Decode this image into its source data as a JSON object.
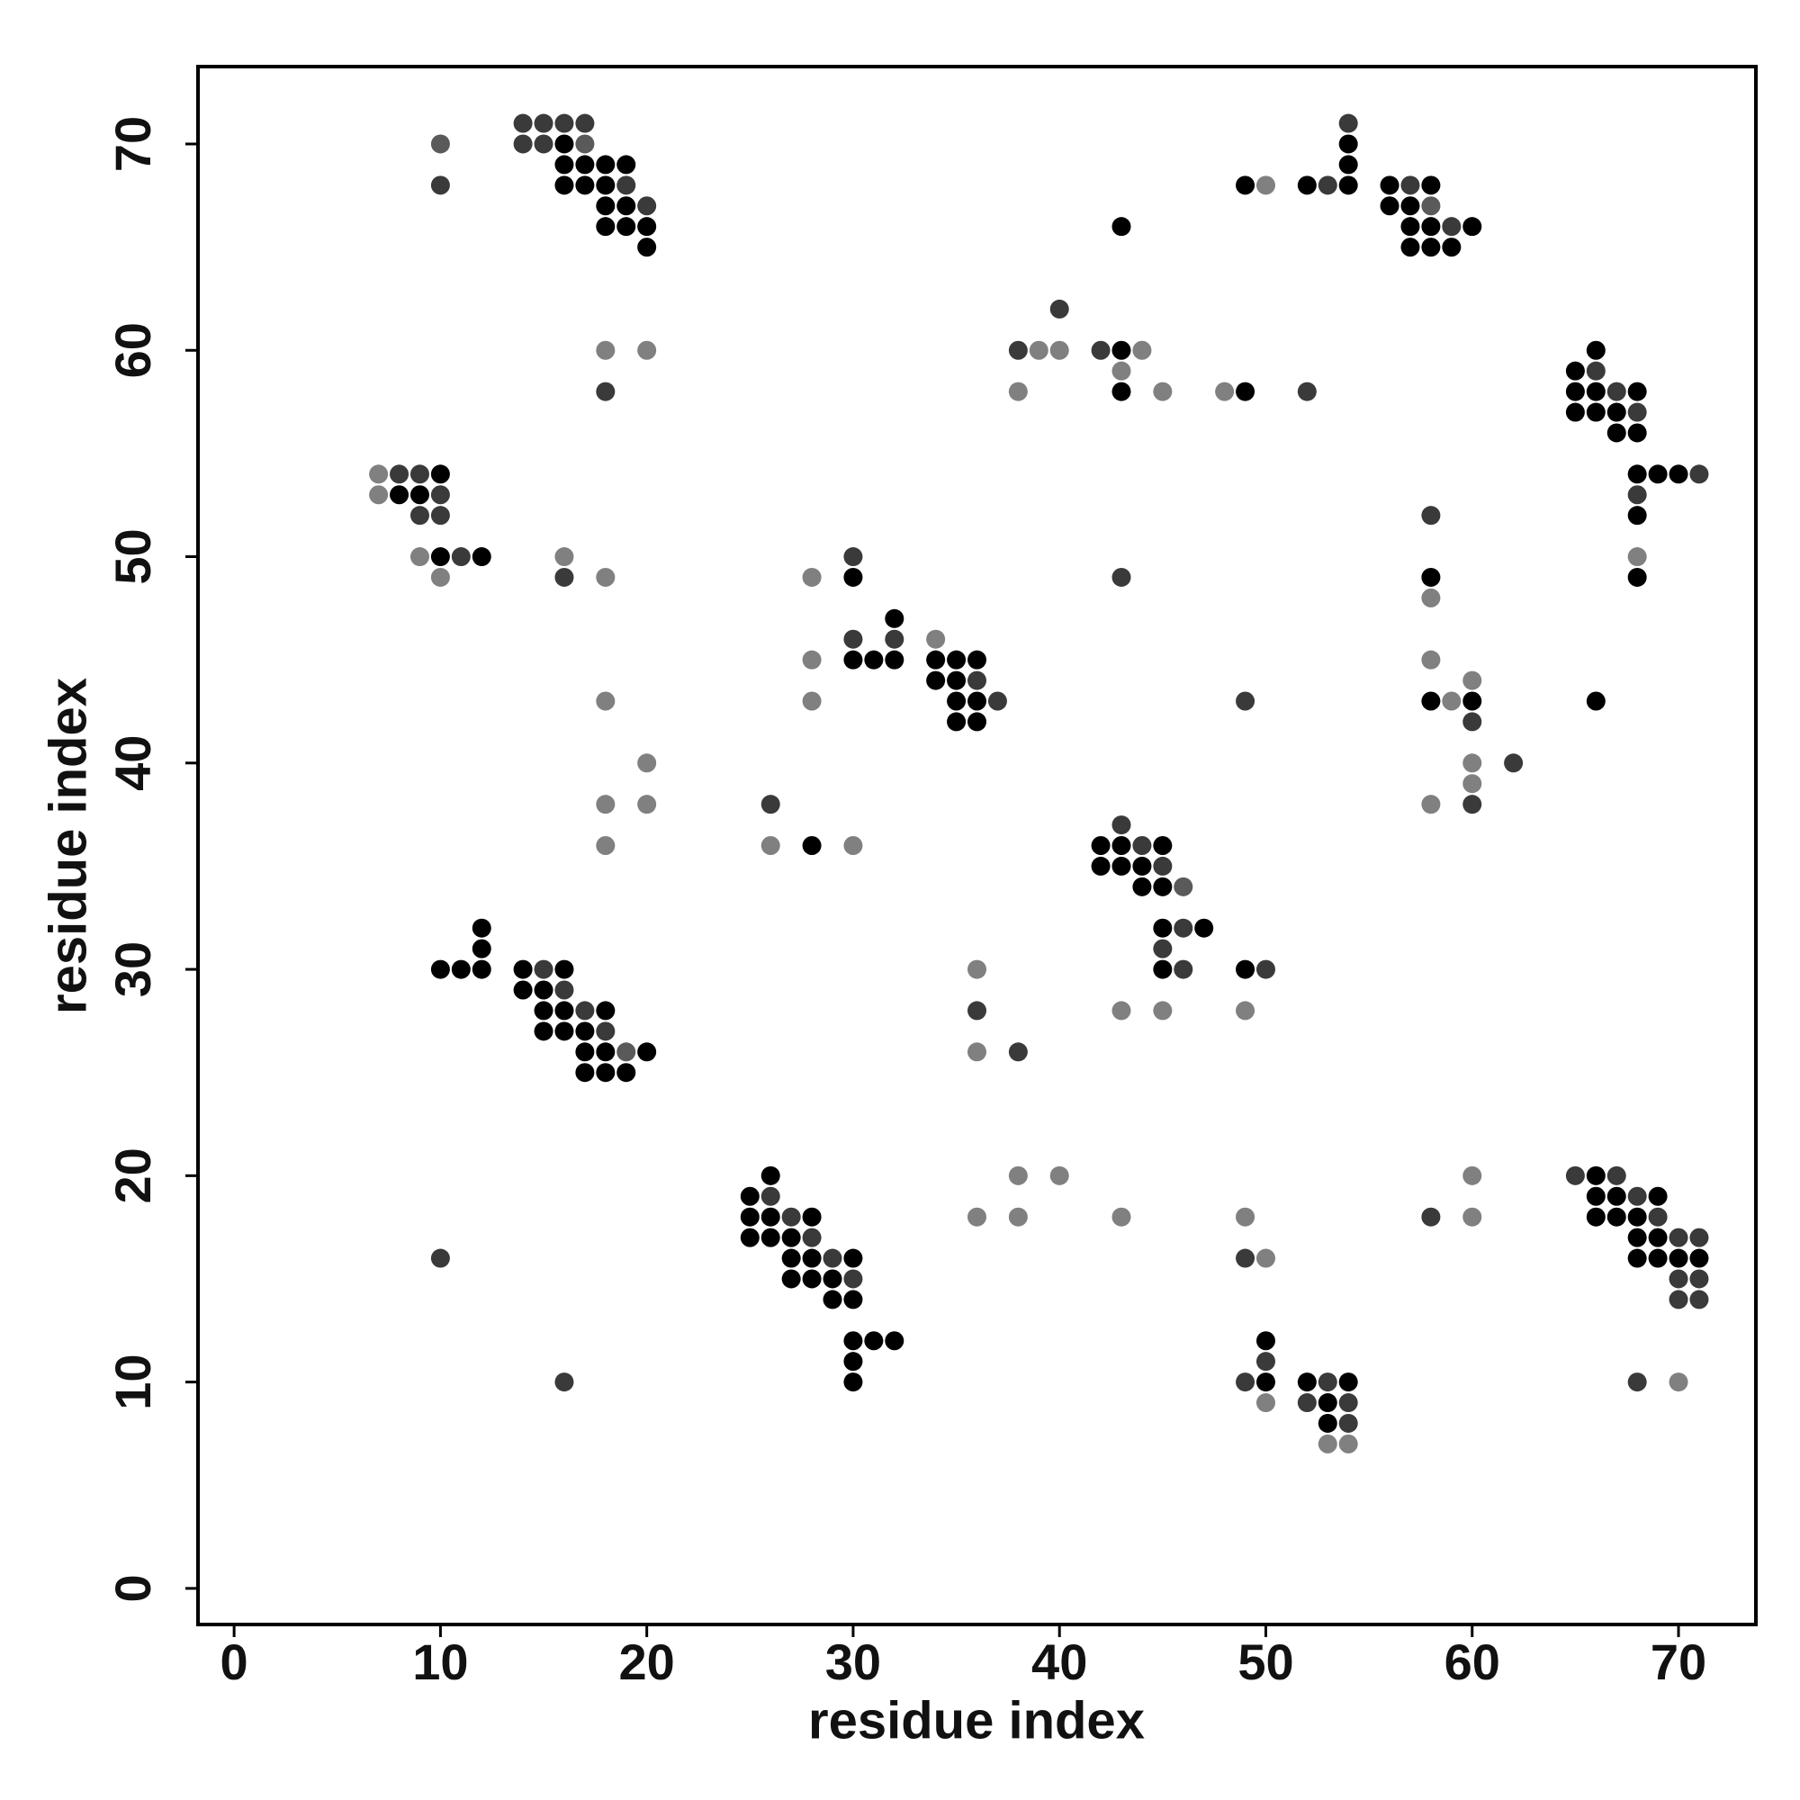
{
  "chart_data": {
    "type": "scatter",
    "xlabel": "residue index",
    "ylabel": "residue index",
    "xlim": [
      -1.75,
      73.75
    ],
    "ylim": [
      -1.75,
      73.75
    ],
    "xticks": [
      0,
      10,
      20,
      30,
      40,
      50,
      60,
      70
    ],
    "yticks": [
      0,
      10,
      20,
      30,
      40,
      50,
      60,
      70
    ],
    "series": [
      {
        "color": "#000000",
        "x": [
          16,
          54,
          16,
          17,
          18,
          19,
          54,
          16,
          17,
          18,
          49,
          52,
          54,
          56,
          58,
          18,
          19,
          56,
          57,
          18,
          19,
          20,
          43,
          57,
          58,
          60,
          20,
          57,
          58,
          59,
          43,
          66,
          65,
          43,
          49,
          65,
          66,
          68,
          65,
          66,
          67,
          67,
          68,
          10,
          68,
          69,
          70,
          8,
          9,
          68,
          10,
          12,
          30,
          58,
          68,
          32,
          30,
          31,
          32,
          34,
          35,
          36,
          34,
          35,
          35,
          36,
          58,
          60,
          66,
          35,
          36,
          28,
          42,
          43,
          45,
          42,
          43,
          44,
          44,
          45,
          12,
          45,
          47,
          12,
          10,
          11,
          12,
          14,
          16,
          45,
          49,
          14,
          15,
          15,
          16,
          18,
          15,
          16,
          17,
          17,
          18,
          20,
          17,
          18,
          19,
          26,
          66,
          25,
          66,
          67,
          69,
          25,
          26,
          28,
          66,
          67,
          68,
          25,
          26,
          27,
          68,
          69,
          27,
          28,
          30,
          68,
          69,
          70,
          71,
          27,
          28,
          29,
          29,
          30,
          30,
          31,
          32,
          50,
          30,
          30,
          50,
          52,
          54,
          53,
          53
        ],
        "y": [
          70,
          70,
          69,
          69,
          69,
          69,
          69,
          68,
          68,
          68,
          68,
          68,
          68,
          68,
          68,
          67,
          67,
          67,
          67,
          66,
          66,
          66,
          66,
          66,
          66,
          66,
          65,
          65,
          65,
          65,
          60,
          60,
          59,
          58,
          58,
          58,
          58,
          58,
          57,
          57,
          57,
          56,
          56,
          54,
          54,
          54,
          54,
          53,
          53,
          52,
          50,
          50,
          49,
          49,
          49,
          47,
          45,
          45,
          45,
          45,
          45,
          45,
          44,
          44,
          43,
          43,
          43,
          43,
          43,
          42,
          42,
          36,
          36,
          36,
          36,
          35,
          35,
          35,
          34,
          34,
          32,
          32,
          32,
          31,
          30,
          30,
          30,
          30,
          30,
          30,
          30,
          29,
          29,
          28,
          28,
          28,
          27,
          27,
          27,
          26,
          26,
          26,
          25,
          25,
          25,
          20,
          20,
          19,
          19,
          19,
          19,
          18,
          18,
          18,
          18,
          18,
          18,
          17,
          17,
          17,
          17,
          17,
          16,
          16,
          16,
          16,
          16,
          16,
          16,
          15,
          15,
          15,
          14,
          14,
          12,
          12,
          12,
          12,
          11,
          10,
          10,
          10,
          10,
          9,
          8
        ]
      },
      {
        "color": "#3a3a3a",
        "x": [
          14,
          15,
          16,
          17,
          54,
          14,
          15,
          10,
          19,
          53,
          57,
          20,
          59,
          40,
          38,
          42,
          66,
          18,
          52,
          67,
          68,
          8,
          9,
          71,
          10,
          68,
          9,
          10,
          58,
          11,
          30,
          16,
          43,
          30,
          32,
          36,
          37,
          49,
          60,
          62,
          26,
          60,
          43,
          44,
          45,
          46,
          45,
          15,
          46,
          50,
          16,
          17,
          36,
          18,
          38,
          65,
          67,
          26,
          68,
          27,
          58,
          69,
          28,
          70,
          71,
          10,
          29,
          49,
          30,
          70,
          71,
          70,
          71,
          50,
          16,
          49,
          53,
          68,
          52,
          54,
          54
        ],
        "y": [
          71,
          71,
          71,
          71,
          71,
          70,
          70,
          68,
          68,
          68,
          68,
          67,
          66,
          62,
          60,
          60,
          59,
          58,
          58,
          58,
          57,
          54,
          54,
          54,
          53,
          53,
          52,
          52,
          52,
          50,
          50,
          49,
          49,
          46,
          46,
          44,
          43,
          43,
          42,
          40,
          38,
          38,
          37,
          36,
          35,
          32,
          31,
          30,
          30,
          30,
          29,
          28,
          28,
          27,
          26,
          20,
          20,
          19,
          19,
          18,
          18,
          18,
          17,
          17,
          17,
          16,
          16,
          16,
          15,
          15,
          15,
          14,
          14,
          11,
          10,
          10,
          10,
          10,
          9,
          9,
          8
        ]
      },
      {
        "color": "#5a5a5a",
        "x": [
          10,
          17,
          58,
          46,
          19
        ],
        "y": [
          70,
          70,
          67,
          34,
          26
        ]
      },
      {
        "color": "#808080",
        "x": [
          50,
          18,
          20,
          39,
          40,
          44,
          43,
          38,
          45,
          48,
          7,
          7,
          9,
          16,
          68,
          10,
          18,
          28,
          58,
          34,
          28,
          58,
          60,
          18,
          28,
          59,
          20,
          60,
          60,
          18,
          20,
          58,
          18,
          26,
          30,
          36,
          43,
          45,
          49,
          36,
          38,
          40,
          60,
          36,
          38,
          43,
          49,
          60,
          50,
          70,
          50,
          53,
          54
        ],
        "y": [
          68,
          60,
          60,
          60,
          60,
          60,
          59,
          58,
          58,
          58,
          54,
          53,
          50,
          50,
          50,
          49,
          49,
          49,
          48,
          46,
          45,
          45,
          44,
          43,
          43,
          43,
          40,
          40,
          39,
          38,
          38,
          38,
          36,
          36,
          36,
          30,
          28,
          28,
          28,
          26,
          20,
          20,
          20,
          18,
          18,
          18,
          18,
          18,
          16,
          10,
          9,
          7,
          7
        ]
      }
    ]
  }
}
